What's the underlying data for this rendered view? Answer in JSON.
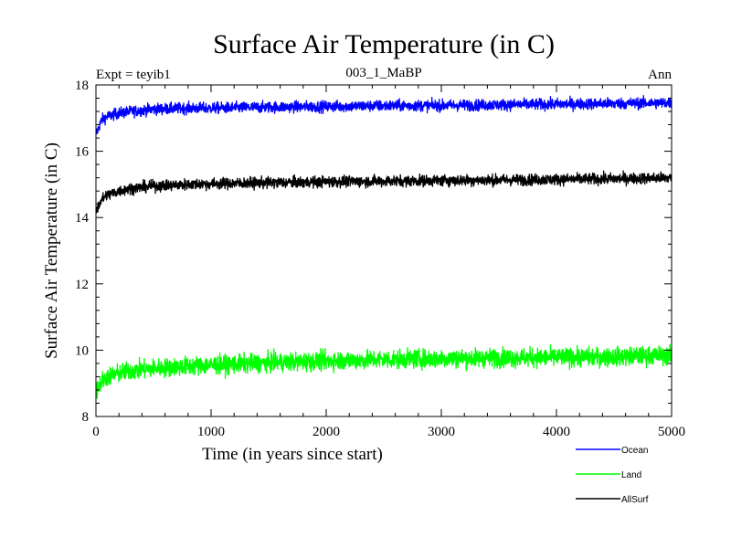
{
  "chart_data": {
    "type": "line",
    "title": "Surface Air Temperature (in C)",
    "subtitle_left": "Expt = teyib1",
    "subtitle_center": "003_1_MaBP",
    "subtitle_right": "Ann",
    "xlabel": "Time (in years since start)",
    "ylabel": "Surface Air Temperature (in C)",
    "xlim": [
      0,
      5000
    ],
    "ylim": [
      8,
      18
    ],
    "xticks": [
      0,
      1000,
      2000,
      3000,
      4000,
      5000
    ],
    "yticks": [
      8,
      10,
      12,
      14,
      16,
      18
    ],
    "series": [
      {
        "name": "Ocean",
        "color": "#0000ff",
        "noise": 0.12,
        "x": [
          0,
          50,
          100,
          200,
          300,
          500,
          800,
          1000,
          1500,
          2000,
          2500,
          3000,
          3500,
          4000,
          4500,
          5000
        ],
        "values": [
          16.5,
          16.95,
          17.05,
          17.15,
          17.2,
          17.27,
          17.3,
          17.3,
          17.33,
          17.35,
          17.37,
          17.38,
          17.4,
          17.42,
          17.44,
          17.46
        ]
      },
      {
        "name": "Land",
        "color": "#00ff00",
        "noise": 0.2,
        "x": [
          0,
          50,
          100,
          200,
          300,
          500,
          800,
          1000,
          1500,
          2000,
          2500,
          3000,
          3500,
          4000,
          4500,
          5000
        ],
        "values": [
          8.8,
          9.05,
          9.2,
          9.3,
          9.38,
          9.45,
          9.52,
          9.55,
          9.62,
          9.68,
          9.72,
          9.75,
          9.77,
          9.78,
          9.8,
          9.85
        ]
      },
      {
        "name": "AllSurf",
        "color": "#000000",
        "noise": 0.12,
        "x": [
          0,
          50,
          100,
          200,
          300,
          500,
          800,
          1000,
          1500,
          2000,
          2500,
          3000,
          3500,
          4000,
          4500,
          5000
        ],
        "values": [
          14.2,
          14.55,
          14.68,
          14.8,
          14.88,
          14.95,
          15.0,
          15.02,
          15.05,
          15.08,
          15.1,
          15.12,
          15.13,
          15.15,
          15.17,
          15.2
        ]
      }
    ],
    "legend_position": "bottom-right"
  }
}
